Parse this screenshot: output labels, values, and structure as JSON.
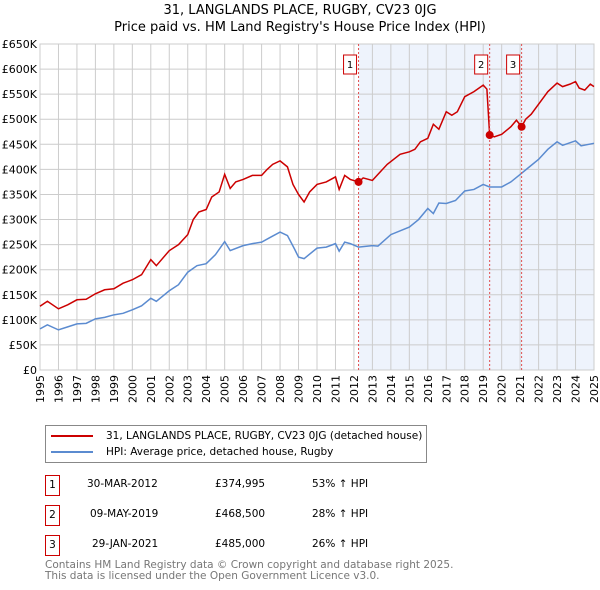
{
  "title": "31, LANGLANDS PLACE, RUGBY, CV23 0JG",
  "subtitle": "Price paid vs. HM Land Registry's House Price Index (HPI)",
  "chart_data": {
    "type": "line",
    "xlim": [
      1995,
      2025
    ],
    "ylim": [
      0,
      650000
    ],
    "y_ticks": [
      0,
      50000,
      100000,
      150000,
      200000,
      250000,
      300000,
      350000,
      400000,
      450000,
      500000,
      550000,
      600000,
      650000
    ],
    "y_tick_labels": [
      "£0",
      "£50K",
      "£100K",
      "£150K",
      "£200K",
      "£250K",
      "£300K",
      "£350K",
      "£400K",
      "£450K",
      "£500K",
      "£550K",
      "£600K",
      "£650K"
    ],
    "x_ticks": [
      1995,
      1996,
      1997,
      1998,
      1999,
      2000,
      2001,
      2002,
      2003,
      2004,
      2005,
      2006,
      2007,
      2008,
      2009,
      2010,
      2011,
      2012,
      2013,
      2014,
      2015,
      2016,
      2017,
      2018,
      2019,
      2020,
      2021,
      2022,
      2023,
      2024,
      2025
    ],
    "grid": true,
    "series": [
      {
        "name": "31, LANGLANDS PLACE, RUGBY, CV23 0JG (detached house)",
        "color": "#cc0000",
        "points": [
          [
            1995,
            127
          ],
          [
            1995.4,
            137
          ],
          [
            1996,
            122
          ],
          [
            1996.5,
            130
          ],
          [
            1997,
            140
          ],
          [
            1997.5,
            141
          ],
          [
            1998,
            152
          ],
          [
            1998.5,
            160
          ],
          [
            1999,
            162
          ],
          [
            1999.5,
            173
          ],
          [
            2000,
            180
          ],
          [
            2000.5,
            190
          ],
          [
            2001,
            220
          ],
          [
            2001.3,
            208
          ],
          [
            2002,
            238
          ],
          [
            2002.5,
            250
          ],
          [
            2003,
            270
          ],
          [
            2003.3,
            300
          ],
          [
            2003.6,
            315
          ],
          [
            2004,
            320
          ],
          [
            2004.3,
            345
          ],
          [
            2004.7,
            355
          ],
          [
            2005,
            390
          ],
          [
            2005.3,
            362
          ],
          [
            2005.6,
            375
          ],
          [
            2006,
            380
          ],
          [
            2006.5,
            388
          ],
          [
            2007,
            388
          ],
          [
            2007.3,
            400
          ],
          [
            2007.6,
            410
          ],
          [
            2008,
            417
          ],
          [
            2008.4,
            405
          ],
          [
            2008.7,
            370
          ],
          [
            2009,
            350
          ],
          [
            2009.3,
            335
          ],
          [
            2009.6,
            355
          ],
          [
            2010,
            370
          ],
          [
            2010.5,
            375
          ],
          [
            2011,
            385
          ],
          [
            2011.2,
            360
          ],
          [
            2011.5,
            388
          ],
          [
            2011.8,
            380
          ],
          [
            2012.25,
            375
          ],
          [
            2012.5,
            383
          ],
          [
            2013,
            378
          ],
          [
            2013.3,
            390
          ],
          [
            2013.8,
            410
          ],
          [
            2014.5,
            430
          ],
          [
            2015,
            435
          ],
          [
            2015.3,
            440
          ],
          [
            2015.6,
            455
          ],
          [
            2016,
            462
          ],
          [
            2016.3,
            490
          ],
          [
            2016.6,
            480
          ],
          [
            2017,
            515
          ],
          [
            2017.3,
            508
          ],
          [
            2017.6,
            515
          ],
          [
            2018,
            545
          ],
          [
            2018.5,
            555
          ],
          [
            2019,
            568
          ],
          [
            2019.2,
            560
          ],
          [
            2019.35,
            468.5
          ],
          [
            2019.6,
            465
          ],
          [
            2020,
            470
          ],
          [
            2020.5,
            485
          ],
          [
            2020.8,
            498
          ],
          [
            2021.08,
            485
          ],
          [
            2021.3,
            500
          ],
          [
            2021.6,
            510
          ],
          [
            2022,
            530
          ],
          [
            2022.5,
            555
          ],
          [
            2023,
            572
          ],
          [
            2023.3,
            565
          ],
          [
            2023.7,
            570
          ],
          [
            2024,
            575
          ],
          [
            2024.2,
            562
          ],
          [
            2024.5,
            558
          ],
          [
            2024.8,
            570
          ],
          [
            2025,
            565
          ]
        ]
      },
      {
        "name": "HPI: Average price, detached house, Rugby",
        "color": "#5b8bd0",
        "points": [
          [
            1995,
            82
          ],
          [
            1995.4,
            90
          ],
          [
            1996,
            80
          ],
          [
            1996.5,
            86
          ],
          [
            1997,
            92
          ],
          [
            1997.5,
            93
          ],
          [
            1998,
            102
          ],
          [
            1998.5,
            105
          ],
          [
            1999,
            110
          ],
          [
            1999.5,
            113
          ],
          [
            2000,
            120
          ],
          [
            2000.5,
            128
          ],
          [
            2001,
            143
          ],
          [
            2001.3,
            137
          ],
          [
            2002,
            158
          ],
          [
            2002.5,
            170
          ],
          [
            2003,
            195
          ],
          [
            2003.5,
            208
          ],
          [
            2004,
            212
          ],
          [
            2004.5,
            230
          ],
          [
            2005,
            256
          ],
          [
            2005.3,
            238
          ],
          [
            2006,
            248
          ],
          [
            2006.5,
            252
          ],
          [
            2007,
            255
          ],
          [
            2007.5,
            265
          ],
          [
            2008,
            275
          ],
          [
            2008.4,
            268
          ],
          [
            2008.8,
            240
          ],
          [
            2009,
            225
          ],
          [
            2009.3,
            222
          ],
          [
            2010,
            243
          ],
          [
            2010.5,
            245
          ],
          [
            2011,
            252
          ],
          [
            2011.2,
            237
          ],
          [
            2011.5,
            255
          ],
          [
            2011.8,
            252
          ],
          [
            2012.25,
            245
          ],
          [
            2013,
            248
          ],
          [
            2013.3,
            247
          ],
          [
            2014,
            270
          ],
          [
            2015,
            285
          ],
          [
            2015.5,
            300
          ],
          [
            2016,
            322
          ],
          [
            2016.3,
            312
          ],
          [
            2016.6,
            333
          ],
          [
            2017,
            332
          ],
          [
            2017.5,
            338
          ],
          [
            2018,
            357
          ],
          [
            2018.5,
            360
          ],
          [
            2019,
            370
          ],
          [
            2019.35,
            365
          ],
          [
            2020,
            365
          ],
          [
            2020.5,
            375
          ],
          [
            2021,
            390
          ],
          [
            2021.5,
            405
          ],
          [
            2022,
            420
          ],
          [
            2022.5,
            440
          ],
          [
            2023,
            455
          ],
          [
            2023.3,
            448
          ],
          [
            2024,
            457
          ],
          [
            2024.3,
            447
          ],
          [
            2025,
            452
          ]
        ]
      }
    ],
    "units_note": "values in £K",
    "sales": [
      {
        "label": "1",
        "x": 2012.25,
        "date": "30-MAR-2012",
        "price": "£374,995",
        "value": 374.995,
        "hpi": "53% ↑ HPI"
      },
      {
        "label": "2",
        "x": 2019.35,
        "date": "09-MAY-2019",
        "price": "£468,500",
        "value": 468.5,
        "hpi": "28% ↑ HPI"
      },
      {
        "label": "3",
        "x": 2021.08,
        "date": "29-JAN-2021",
        "price": "£485,000",
        "value": 485,
        "hpi": "26% ↑ HPI"
      }
    ],
    "legend": [
      "31, LANGLANDS PLACE, RUGBY, CV23 0JG (detached house)",
      "HPI: Average price, detached house, Rugby"
    ]
  },
  "footer": [
    "Contains HM Land Registry data © Crown copyright and database right 2025.",
    "This data is licensed under the Open Government Licence v3.0."
  ]
}
